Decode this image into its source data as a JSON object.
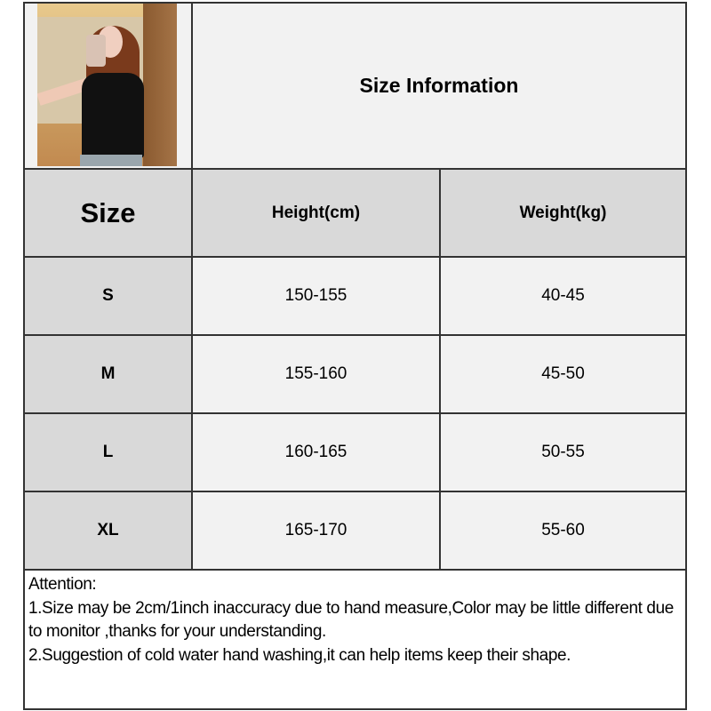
{
  "title": "Size Information",
  "headers": [
    "Size",
    "Height(cm)",
    "Weight(kg)"
  ],
  "rows": [
    {
      "size": "S",
      "height": "150-155",
      "weight": "40-45"
    },
    {
      "size": "M",
      "height": "155-160",
      "weight": "45-50"
    },
    {
      "size": "L",
      "height": "160-165",
      "weight": "50-55"
    },
    {
      "size": "XL",
      "height": "165-170",
      "weight": "55-60"
    }
  ],
  "notes": {
    "heading": "Attention:",
    "line1": "1.Size may be 2cm/1inch inaccuracy due to hand measure,Color may be little different due to monitor ,thanks for your understanding.",
    "line2": "2.Suggestion of cold water hand washing,it can help items keep their shape."
  },
  "colors": {
    "header_bg": "#d9d9d9",
    "cell_bg": "#f2f2f2",
    "border": "#333333"
  }
}
